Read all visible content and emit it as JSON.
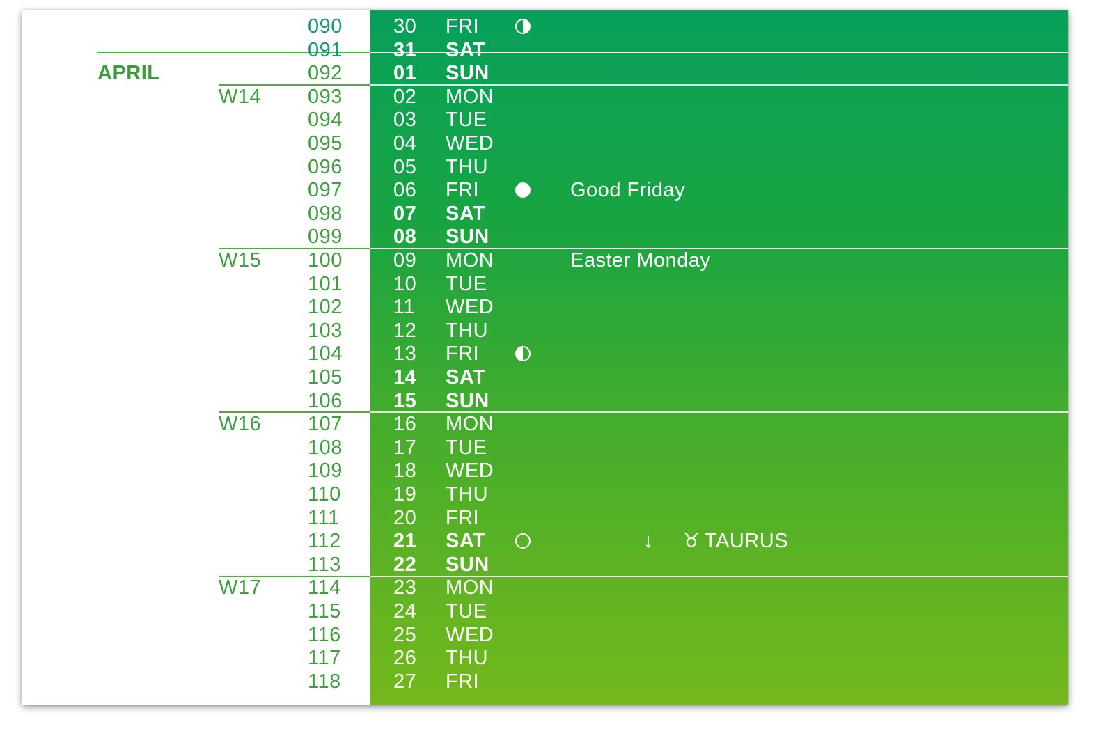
{
  "months": [
    {
      "name": "APRIL",
      "first_row": 2
    }
  ],
  "weeks": [
    {
      "label": "W14",
      "first_row": 3
    },
    {
      "label": "W15",
      "first_row": 10
    },
    {
      "label": "W16",
      "first_row": 17
    },
    {
      "label": "W17",
      "first_row": 24
    }
  ],
  "rows": [
    {
      "doy": "090",
      "day": "30",
      "weekday": "FRI",
      "weekend": false,
      "moon": "first-quarter-moon-icon",
      "note": ""
    },
    {
      "doy": "091",
      "day": "31",
      "weekday": "SAT",
      "weekend": true,
      "moon": "",
      "note": ""
    },
    {
      "doy": "092",
      "day": "01",
      "weekday": "SUN",
      "weekend": true,
      "moon": "",
      "note": ""
    },
    {
      "doy": "093",
      "day": "02",
      "weekday": "MON",
      "weekend": false,
      "moon": "",
      "note": ""
    },
    {
      "doy": "094",
      "day": "03",
      "weekday": "TUE",
      "weekend": false,
      "moon": "",
      "note": ""
    },
    {
      "doy": "095",
      "day": "04",
      "weekday": "WED",
      "weekend": false,
      "moon": "",
      "note": ""
    },
    {
      "doy": "096",
      "day": "05",
      "weekday": "THU",
      "weekend": false,
      "moon": "",
      "note": ""
    },
    {
      "doy": "097",
      "day": "06",
      "weekday": "FRI",
      "weekend": false,
      "moon": "full-moon-icon",
      "note": "Good Friday"
    },
    {
      "doy": "098",
      "day": "07",
      "weekday": "SAT",
      "weekend": true,
      "moon": "",
      "note": ""
    },
    {
      "doy": "099",
      "day": "08",
      "weekday": "SUN",
      "weekend": true,
      "moon": "",
      "note": ""
    },
    {
      "doy": "100",
      "day": "09",
      "weekday": "MON",
      "weekend": false,
      "moon": "",
      "note": "Easter Monday"
    },
    {
      "doy": "101",
      "day": "10",
      "weekday": "TUE",
      "weekend": false,
      "moon": "",
      "note": ""
    },
    {
      "doy": "102",
      "day": "11",
      "weekday": "WED",
      "weekend": false,
      "moon": "",
      "note": ""
    },
    {
      "doy": "103",
      "day": "12",
      "weekday": "THU",
      "weekend": false,
      "moon": "",
      "note": ""
    },
    {
      "doy": "104",
      "day": "13",
      "weekday": "FRI",
      "weekend": false,
      "moon": "last-quarter-moon-icon",
      "note": ""
    },
    {
      "doy": "105",
      "day": "14",
      "weekday": "SAT",
      "weekend": true,
      "moon": "",
      "note": ""
    },
    {
      "doy": "106",
      "day": "15",
      "weekday": "SUN",
      "weekend": true,
      "moon": "",
      "note": ""
    },
    {
      "doy": "107",
      "day": "16",
      "weekday": "MON",
      "weekend": false,
      "moon": "",
      "note": ""
    },
    {
      "doy": "108",
      "day": "17",
      "weekday": "TUE",
      "weekend": false,
      "moon": "",
      "note": ""
    },
    {
      "doy": "109",
      "day": "18",
      "weekday": "WED",
      "weekend": false,
      "moon": "",
      "note": ""
    },
    {
      "doy": "110",
      "day": "19",
      "weekday": "THU",
      "weekend": false,
      "moon": "",
      "note": ""
    },
    {
      "doy": "111",
      "day": "20",
      "weekday": "FRI",
      "weekend": false,
      "moon": "",
      "note": ""
    },
    {
      "doy": "112",
      "day": "21",
      "weekday": "SAT",
      "weekend": true,
      "moon": "new-moon-icon",
      "note": "",
      "zodiac_arrow": "↓",
      "zodiac_arrow_icon": "arrow-down-icon",
      "zodiac_symbol": "♉",
      "zodiac_icon": "taurus-icon",
      "zodiac_name": "TAURUS"
    },
    {
      "doy": "113",
      "day": "22",
      "weekday": "SUN",
      "weekend": true,
      "moon": "",
      "note": ""
    },
    {
      "doy": "114",
      "day": "23",
      "weekday": "MON",
      "weekend": false,
      "moon": "",
      "note": ""
    },
    {
      "doy": "115",
      "day": "24",
      "weekday": "TUE",
      "weekend": false,
      "moon": "",
      "note": ""
    },
    {
      "doy": "116",
      "day": "25",
      "weekday": "WED",
      "weekend": false,
      "moon": "",
      "note": ""
    },
    {
      "doy": "117",
      "day": "26",
      "weekday": "THU",
      "weekend": false,
      "moon": "",
      "note": ""
    },
    {
      "doy": "118",
      "day": "27",
      "weekday": "FRI",
      "weekend": false,
      "moon": "",
      "note": ""
    }
  ],
  "colors": {
    "accent_green": "#3f9f3f",
    "panel_top": "#07a05a",
    "panel_bottom": "#74b81c"
  }
}
